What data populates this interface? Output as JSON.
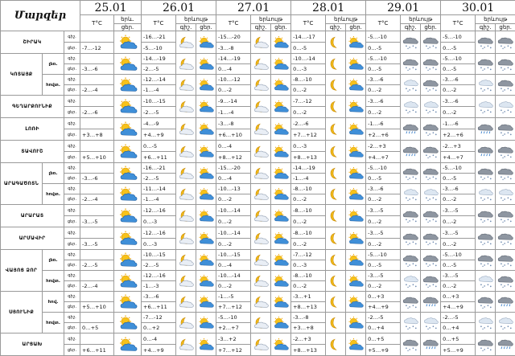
{
  "header": {
    "title": "Մարզեր",
    "dates": [
      "25.01",
      "26.01",
      "27.01",
      "28.01",
      "29.01",
      "30.01"
    ],
    "col_temp": "T°C",
    "col_sky_day1": "երև.",
    "col_sky": "երևույթ",
    "col_night": "գիշ.",
    "col_day": "ցեր."
  },
  "labels": {
    "night": "գիշ.",
    "day": "ցեր."
  },
  "regions": [
    {
      "name": "ՇԻՐԱԿ",
      "rows": [
        {
          "sub": "",
          "days": [
            {
              "n": "",
              "d": "-7…-12",
              "icon": "sun-cloud"
            },
            {
              "n": "-16…-21",
              "d": "-5…-10",
              "icons": [
                "moon-cloud",
                "sun-cloud"
              ]
            },
            {
              "n": "-15…-20",
              "d": "-3…-8",
              "icons": [
                "moon-cloud",
                "sun-cloud"
              ]
            },
            {
              "n": "-14…-17",
              "d": "0…-5",
              "icons": [
                "moon",
                "sun-cloud"
              ]
            },
            {
              "n": "-5…-10",
              "d": "0…-5",
              "icons": [
                "snow-cloud",
                "snow-cloud"
              ]
            },
            {
              "n": "-5…-10",
              "d": "0…-5",
              "icons": [
                "snow-cloud",
                "snow-cloud"
              ]
            }
          ]
        }
      ]
    },
    {
      "name": "ԿՈՏԱՅՔ",
      "rows": [
        {
          "sub": "լեռ.",
          "days": [
            {
              "n": "",
              "d": "-3…-6",
              "icon": "sun-cloud"
            },
            {
              "n": "-14…-19",
              "d": "-2…-5",
              "icons": [
                "moon-cloud",
                "sun-cloud"
              ]
            },
            {
              "n": "-14…-19",
              "d": "0…-4",
              "icons": [
                "moon-cloud",
                "sun-cloud"
              ]
            },
            {
              "n": "-10…-14",
              "d": "0…-3",
              "icons": [
                "moon",
                "sun-cloud"
              ]
            },
            {
              "n": "-5…-10",
              "d": "0…-5",
              "icons": [
                "snow-cloud",
                "snow-cloud"
              ]
            },
            {
              "n": "-5…-10",
              "d": "0…-5",
              "icons": [
                "snow-cloud",
                "snow-cloud"
              ]
            }
          ]
        },
        {
          "sub": "հովտ.",
          "days": [
            {
              "n": "",
              "d": "-2…-4",
              "icon": "sun-cloud"
            },
            {
              "n": "-12…-14",
              "d": "-1…-4",
              "icons": [
                "moon-cloud",
                "sun-cloud"
              ]
            },
            {
              "n": "-10…-12",
              "d": "0…-2",
              "icons": [
                "moon-cloud",
                "sun-cloud"
              ]
            },
            {
              "n": "-8…-10",
              "d": "0…-2",
              "icons": [
                "moon",
                "sun-cloud"
              ]
            },
            {
              "n": "-3…-6",
              "d": "0…-2",
              "icons": [
                "snow",
                "snow-cloud"
              ]
            },
            {
              "n": "-3…-6",
              "d": "0…-2",
              "icons": [
                "snow",
                "snow-cloud"
              ]
            }
          ]
        }
      ]
    },
    {
      "name": "ԳԵՂԱՐՔՈՒՆԻՔ",
      "rows": [
        {
          "sub": "",
          "days": [
            {
              "n": "",
              "d": "-2…-6",
              "icon": "sun-cloud"
            },
            {
              "n": "-10…-15",
              "d": "-2…-5",
              "icons": [
                "moon-cloud",
                "sun-cloud"
              ]
            },
            {
              "n": "-9…-14",
              "d": "-1…-4",
              "icons": [
                "moon-cloud",
                "sun-cloud"
              ]
            },
            {
              "n": "-7…-12",
              "d": "0…-2",
              "icons": [
                "moon",
                "sun-cloud"
              ]
            },
            {
              "n": "-3…-6",
              "d": "0…-2",
              "icons": [
                "snow",
                "snow"
              ]
            },
            {
              "n": "-3…-6",
              "d": "0…-2",
              "icons": [
                "snow",
                "snow"
              ]
            }
          ]
        }
      ]
    },
    {
      "name": "ԼՈՌԻ",
      "rows": [
        {
          "sub": "",
          "days": [
            {
              "n": "",
              "d": "+3…+8",
              "icon": "sun-cloud"
            },
            {
              "n": "-4…-9",
              "d": "+4…+9",
              "icons": [
                "moon-cloud",
                "sun-cloud"
              ]
            },
            {
              "n": "-3…-8",
              "d": "+6…+10",
              "icons": [
                "moon-cloud",
                "sun-cloud"
              ]
            },
            {
              "n": "-2…-6",
              "d": "+7…+12",
              "icons": [
                "moon",
                "sun-cloud"
              ]
            },
            {
              "n": "-1…-6",
              "d": "+2…+6",
              "icons": [
                "rain-cloud",
                "snow-cloud"
              ]
            },
            {
              "n": "-1…-6",
              "d": "+2…+6",
              "icons": [
                "rain-cloud",
                "snow-cloud"
              ]
            }
          ]
        }
      ]
    },
    {
      "name": "ՏԱՎՈՒՇ",
      "rows": [
        {
          "sub": "",
          "days": [
            {
              "n": "",
              "d": "+5…+10",
              "icon": "sun-cloud"
            },
            {
              "n": "0…-5",
              "d": "+6…+11",
              "icons": [
                "moon-cloud",
                "sun-cloud"
              ]
            },
            {
              "n": "0…-4",
              "d": "+8…+12",
              "icons": [
                "moon-cloud",
                "sun-cloud"
              ]
            },
            {
              "n": "0…-3",
              "d": "+8…+13",
              "icons": [
                "moon",
                "sun-cloud"
              ]
            },
            {
              "n": "-2…+3",
              "d": "+4…+7",
              "icons": [
                "rain-cloud",
                "snow-cloud"
              ]
            },
            {
              "n": "-2…+3",
              "d": "+4…+7",
              "icons": [
                "rain-cloud",
                "snow-cloud"
              ]
            }
          ]
        }
      ]
    },
    {
      "name": "ԱՐԱԳԱԾՈՏՆ",
      "rows": [
        {
          "sub": "լեռ.",
          "days": [
            {
              "n": "",
              "d": "-3…-6",
              "icon": "sun-cloud"
            },
            {
              "n": "-16…-21",
              "d": "-2…-5",
              "icons": [
                "moon-cloud",
                "sun-cloud"
              ]
            },
            {
              "n": "-15…-20",
              "d": "0…-4",
              "icons": [
                "moon-cloud",
                "sun-cloud"
              ]
            },
            {
              "n": "-14…-19",
              "d": "-1…-4",
              "icons": [
                "moon",
                "sun-cloud"
              ]
            },
            {
              "n": "-5…-10",
              "d": "0…-5",
              "icons": [
                "snow-cloud",
                "snow-cloud"
              ]
            },
            {
              "n": "-5…-10",
              "d": "0…-5",
              "icons": [
                "snow-cloud",
                "snow-cloud"
              ]
            }
          ]
        },
        {
          "sub": "հովտ.",
          "days": [
            {
              "n": "",
              "d": "-2…-4",
              "icon": "sun-cloud"
            },
            {
              "n": "-11…-14",
              "d": "-1…-4",
              "icons": [
                "moon-cloud",
                "sun-cloud"
              ]
            },
            {
              "n": "-10…-13",
              "d": "0…-2",
              "icons": [
                "moon-cloud",
                "sun-cloud"
              ]
            },
            {
              "n": "-8…-10",
              "d": "0…-2",
              "icons": [
                "moon",
                "sun-cloud"
              ]
            },
            {
              "n": "-3…-6",
              "d": "0…-2",
              "icons": [
                "snow",
                "snow"
              ]
            },
            {
              "n": "-3…-6",
              "d": "0…-2",
              "icons": [
                "snow",
                "snow"
              ]
            }
          ]
        }
      ]
    },
    {
      "name": "ԱՐԱՐԱՏ",
      "rows": [
        {
          "sub": "",
          "days": [
            {
              "n": "",
              "d": "-3…-5",
              "icon": "sun-cloud"
            },
            {
              "n": "-12…-16",
              "d": "0…-3",
              "icons": [
                "moon-cloud",
                "sun-cloud"
              ]
            },
            {
              "n": "-10…-14",
              "d": "0…-2",
              "icons": [
                "moon-cloud",
                "sun-cloud"
              ]
            },
            {
              "n": "-8…-10",
              "d": "0…-2",
              "icons": [
                "moon",
                "sun-cloud"
              ]
            },
            {
              "n": "-3…-5",
              "d": "0…-2",
              "icons": [
                "snow-cloud",
                "snow-cloud"
              ]
            },
            {
              "n": "-3…-5",
              "d": "0…-2",
              "icons": [
                "snow-cloud",
                "snow-cloud"
              ]
            }
          ]
        }
      ]
    },
    {
      "name": "ԱՐՄԱՎԻՐ",
      "rows": [
        {
          "sub": "",
          "days": [
            {
              "n": "",
              "d": "-3…-5",
              "icon": "sun-cloud"
            },
            {
              "n": "-12…-16",
              "d": "0…-3",
              "icons": [
                "moon-cloud",
                "sun-cloud"
              ]
            },
            {
              "n": "-10…-14",
              "d": "0…-2",
              "icons": [
                "moon-cloud",
                "sun-cloud"
              ]
            },
            {
              "n": "-8…-10",
              "d": "0…-2",
              "icons": [
                "moon",
                "sun-cloud"
              ]
            },
            {
              "n": "-3…-5",
              "d": "0…-2",
              "icons": [
                "snow-cloud",
                "snow-cloud"
              ]
            },
            {
              "n": "-3…-5",
              "d": "0…-2",
              "icons": [
                "snow-cloud",
                "snow-cloud"
              ]
            }
          ]
        }
      ]
    },
    {
      "name": "ՎԱՅՈՑ ՁՈՐ",
      "rows": [
        {
          "sub": "լեռ.",
          "days": [
            {
              "n": "",
              "d": "-2…-5",
              "icon": "sun-cloud"
            },
            {
              "n": "-10…-15",
              "d": "-2…-5",
              "icons": [
                "moon-cloud",
                "sun-cloud"
              ]
            },
            {
              "n": "-10…-15",
              "d": "0…-4",
              "icons": [
                "moon-cloud",
                "sun-cloud"
              ]
            },
            {
              "n": "-7…-12",
              "d": "0…-3",
              "icons": [
                "moon",
                "sun-cloud"
              ]
            },
            {
              "n": "-5…-10",
              "d": "0…-5",
              "icons": [
                "snow-cloud",
                "snow-cloud"
              ]
            },
            {
              "n": "-5…-10",
              "d": "0…-5",
              "icons": [
                "snow-cloud",
                "snow-cloud"
              ]
            }
          ]
        },
        {
          "sub": "հովտ.",
          "days": [
            {
              "n": "",
              "d": "-2…-4",
              "icon": "sun-cloud"
            },
            {
              "n": "-12…-16",
              "d": "-1…-3",
              "icons": [
                "moon-cloud",
                "sun-cloud"
              ]
            },
            {
              "n": "-10…-14",
              "d": "0…-2",
              "icons": [
                "moon-cloud",
                "sun-cloud"
              ]
            },
            {
              "n": "-8…-10",
              "d": "0…-2",
              "icons": [
                "moon",
                "sun-cloud"
              ]
            },
            {
              "n": "-3…-5",
              "d": "0…-2",
              "icons": [
                "snow",
                "snow-cloud"
              ]
            },
            {
              "n": "-3…-5",
              "d": "0…-2",
              "icons": [
                "snow",
                "snow-cloud"
              ]
            }
          ]
        }
      ]
    },
    {
      "name": "ՍՅՈՒՆԻՔ",
      "rows": [
        {
          "sub": "հով.",
          "days": [
            {
              "n": "",
              "d": "+5…+10",
              "icon": "sun-cloud"
            },
            {
              "n": "-3…-6",
              "d": "+6…+11",
              "icons": [
                "moon-cloud",
                "sun-cloud"
              ]
            },
            {
              "n": "-1…-5",
              "d": "+7…+12",
              "icons": [
                "moon-cloud",
                "sun-cloud"
              ]
            },
            {
              "n": "-3…+1",
              "d": "+8…+13",
              "icons": [
                "moon",
                "sun-cloud"
              ]
            },
            {
              "n": "0…+3",
              "d": "+4…+9",
              "icons": [
                "snow-cloud",
                "rain-cloud"
              ]
            },
            {
              "n": "0…+3",
              "d": "+4…+9",
              "icons": [
                "snow-cloud",
                "rain-cloud"
              ]
            }
          ]
        },
        {
          "sub": "հովտ.",
          "days": [
            {
              "n": "",
              "d": "0…+5",
              "icon": "sun-cloud"
            },
            {
              "n": "-7…-12",
              "d": "0…+2",
              "icons": [
                "moon-cloud",
                "sun-cloud"
              ]
            },
            {
              "n": "-5…-10",
              "d": "+2…+7",
              "icons": [
                "moon-cloud",
                "sun-cloud"
              ]
            },
            {
              "n": "-3…-8",
              "d": "+3…+8",
              "icons": [
                "moon",
                "sun-cloud"
              ]
            },
            {
              "n": "-2…-5",
              "d": "0…+4",
              "icons": [
                "snow",
                "snow"
              ]
            },
            {
              "n": "-2…-5",
              "d": "0…+4",
              "icons": [
                "snow",
                "snow"
              ]
            }
          ]
        }
      ]
    },
    {
      "name": "ԱՐՑԱԽ",
      "rows": [
        {
          "sub": "",
          "days": [
            {
              "n": "",
              "d": "+6…+11",
              "icon": "sun-cloud"
            },
            {
              "n": "0…-4",
              "d": "+4…+9",
              "icons": [
                "moon-cloud",
                "sun-cloud"
              ]
            },
            {
              "n": "-3…+2",
              "d": "+7…+12",
              "icons": [
                "moon-cloud",
                "sun-cloud"
              ]
            },
            {
              "n": "-2…+3",
              "d": "+8…+13",
              "icons": [
                "moon",
                "sun-cloud"
              ]
            },
            {
              "n": "0…+5",
              "d": "+5…+9",
              "icons": [
                "snow-cloud",
                "rain-cloud"
              ]
            },
            {
              "n": "0…+5",
              "d": "+5…+9",
              "icons": [
                "snow-cloud",
                "rain-cloud"
              ]
            }
          ]
        }
      ]
    }
  ]
}
